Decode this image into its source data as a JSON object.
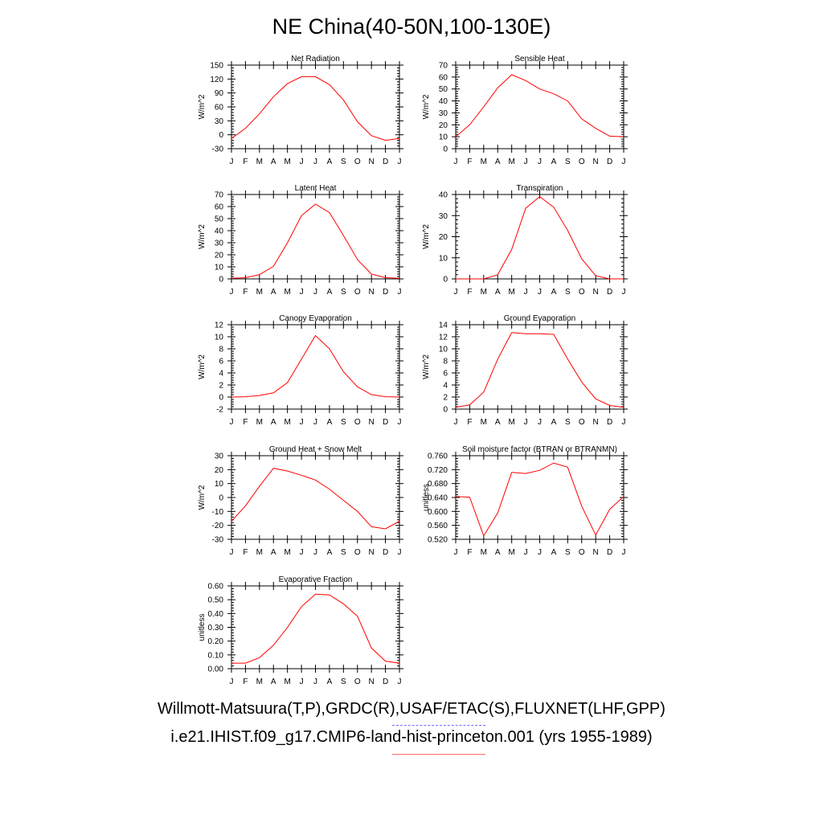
{
  "title": "NE China(40-50N,100-130E)",
  "months": [
    "J",
    "F",
    "M",
    "A",
    "M",
    "J",
    "J",
    "A",
    "S",
    "O",
    "N",
    "D",
    "J"
  ],
  "footer": {
    "observations": "Willmott-Matsuura(T,P),GRDC(R),USAF/ETAC(S),FLUXNET(LHF,GPP)",
    "model_run": "i.e21.IHIST.f09_g17.CMIP6-land-hist-princeton.001 (yrs 1955-1989)",
    "observations_line_color": "#6a6aff",
    "model_line_color": "#ff0000"
  },
  "chart_data": [
    {
      "type": "line",
      "title": "Net Radiation",
      "ylabel": "W/m^2",
      "ylim": [
        -30,
        150
      ],
      "yticks": [
        "-30",
        "0",
        "30",
        "60",
        "90",
        "120",
        "150"
      ],
      "series": [
        {
          "color": "#ff0000",
          "values": [
            -8,
            14,
            45,
            82,
            110,
            125,
            125,
            108,
            75,
            28,
            -2,
            -12,
            -8
          ]
        }
      ]
    },
    {
      "type": "line",
      "title": "Sensible Heat",
      "ylabel": "W/m^2",
      "ylim": [
        0,
        70
      ],
      "yticks": [
        "0",
        "10",
        "20",
        "30",
        "40",
        "50",
        "60",
        "70"
      ],
      "series": [
        {
          "color": "#ff0000",
          "values": [
            10,
            20,
            35,
            51,
            62,
            57,
            50,
            46,
            40,
            25,
            17,
            10.5,
            10
          ]
        }
      ]
    },
    {
      "type": "line",
      "title": "Latent Heat",
      "ylabel": "W/m^2",
      "ylim": [
        0,
        70
      ],
      "yticks": [
        "0",
        "10",
        "20",
        "30",
        "40",
        "50",
        "60",
        "70"
      ],
      "series": [
        {
          "color": "#ff0000",
          "values": [
            0.5,
            1,
            3.5,
            10.5,
            30,
            52.5,
            62,
            55,
            36,
            16,
            4,
            1,
            0.5
          ]
        }
      ]
    },
    {
      "type": "line",
      "title": "Transpiration",
      "ylabel": "W/m^2",
      "ylim": [
        0,
        40
      ],
      "yticks": [
        "0",
        "10",
        "20",
        "30",
        "40"
      ],
      "series": [
        {
          "color": "#ff0000",
          "values": [
            0,
            0,
            0,
            2,
            14,
            33.5,
            39,
            34,
            23,
            9.5,
            1.5,
            0,
            0
          ]
        }
      ]
    },
    {
      "type": "line",
      "title": "Canopy Evaporation",
      "ylabel": "W/m^2",
      "ylim": [
        -2,
        12
      ],
      "yticks": [
        "-2",
        "0",
        "2",
        "4",
        "6",
        "8",
        "10",
        "12"
      ],
      "series": [
        {
          "color": "#ff0000",
          "values": [
            0,
            0.05,
            0.25,
            0.7,
            2.4,
            6.3,
            10.2,
            8,
            4.2,
            1.7,
            0.4,
            0.05,
            0
          ]
        }
      ]
    },
    {
      "type": "line",
      "title": "Ground Evaporation",
      "ylabel": "W/m^2",
      "ylim": [
        0,
        14
      ],
      "yticks": [
        "0",
        "2",
        "4",
        "6",
        "8",
        "10",
        "12",
        "14"
      ],
      "series": [
        {
          "color": "#ff0000",
          "values": [
            0.3,
            0.7,
            2.8,
            8.3,
            12.7,
            12.5,
            12.5,
            12.4,
            8.3,
            4.5,
            1.7,
            0.6,
            0.3
          ]
        }
      ]
    },
    {
      "type": "line",
      "title": "Ground Heat + Snow Melt",
      "ylabel": "W/m^2",
      "ylim": [
        -30,
        30
      ],
      "yticks": [
        "-30",
        "-20",
        "-10",
        "0",
        "10",
        "20",
        "30"
      ],
      "series": [
        {
          "color": "#ff0000",
          "values": [
            -17,
            -6,
            8,
            21,
            19,
            16,
            12.5,
            6,
            -2,
            -10,
            -21,
            -22.5,
            -17
          ]
        }
      ]
    },
    {
      "type": "line",
      "title": "Soil moisture factor (BTRAN or BTRANMN)",
      "ylabel": "unitless",
      "ylim": [
        0.52,
        0.76
      ],
      "yticks": [
        "0.520",
        "0.560",
        "0.600",
        "0.640",
        "0.680",
        "0.720",
        "0.760"
      ],
      "series": [
        {
          "color": "#ff0000",
          "values": [
            0.643,
            0.641,
            0.53,
            0.596,
            0.712,
            0.709,
            0.718,
            0.739,
            0.727,
            0.615,
            0.532,
            0.606,
            0.643
          ]
        }
      ]
    },
    {
      "type": "line",
      "title": "Evaporative Fraction",
      "ylabel": "unitless",
      "ylim": [
        0,
        0.6
      ],
      "yticks": [
        "0.00",
        "0.10",
        "0.20",
        "0.30",
        "0.40",
        "0.50",
        "0.60"
      ],
      "series": [
        {
          "color": "#ff0000",
          "values": [
            0.04,
            0.04,
            0.08,
            0.17,
            0.3,
            0.45,
            0.54,
            0.535,
            0.47,
            0.38,
            0.15,
            0.055,
            0.04
          ]
        }
      ]
    }
  ]
}
